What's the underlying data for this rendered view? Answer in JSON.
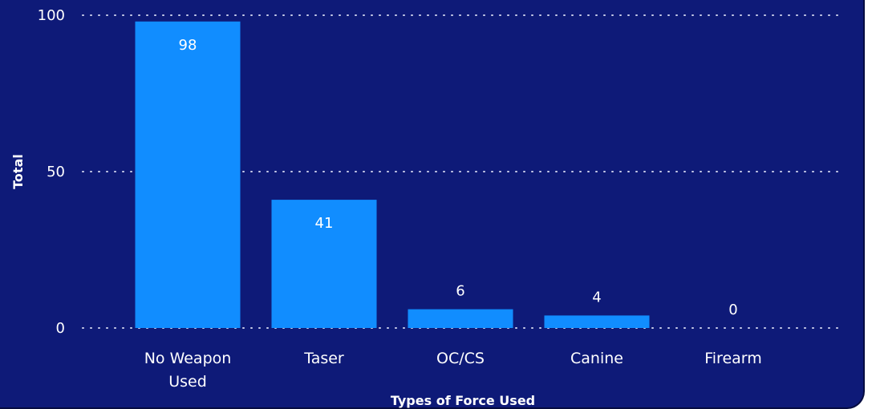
{
  "chart_data": {
    "type": "bar",
    "categories": [
      "No Weapon Used",
      "Taser",
      "OC/CS",
      "Canine",
      "Firearm"
    ],
    "category_lines": [
      [
        "No Weapon",
        "Used"
      ],
      [
        "Taser"
      ],
      [
        "OC/CS"
      ],
      [
        "Canine"
      ],
      [
        "Firearm"
      ]
    ],
    "values": [
      98,
      41,
      6,
      4,
      0
    ],
    "data_labels": [
      "98",
      "41",
      "6",
      "4",
      "0"
    ],
    "xlabel": "Types of Force Used",
    "ylabel": "Total",
    "ylim": [
      0,
      100
    ],
    "yticks": [
      0,
      50,
      100
    ],
    "ytick_labels": [
      "0",
      "50",
      "100"
    ],
    "grid": "horizontal dotted",
    "colors": {
      "background": "#0e1a78",
      "bar": "#118dff",
      "text": "#ffffff",
      "grid": "#c8cce8"
    }
  }
}
